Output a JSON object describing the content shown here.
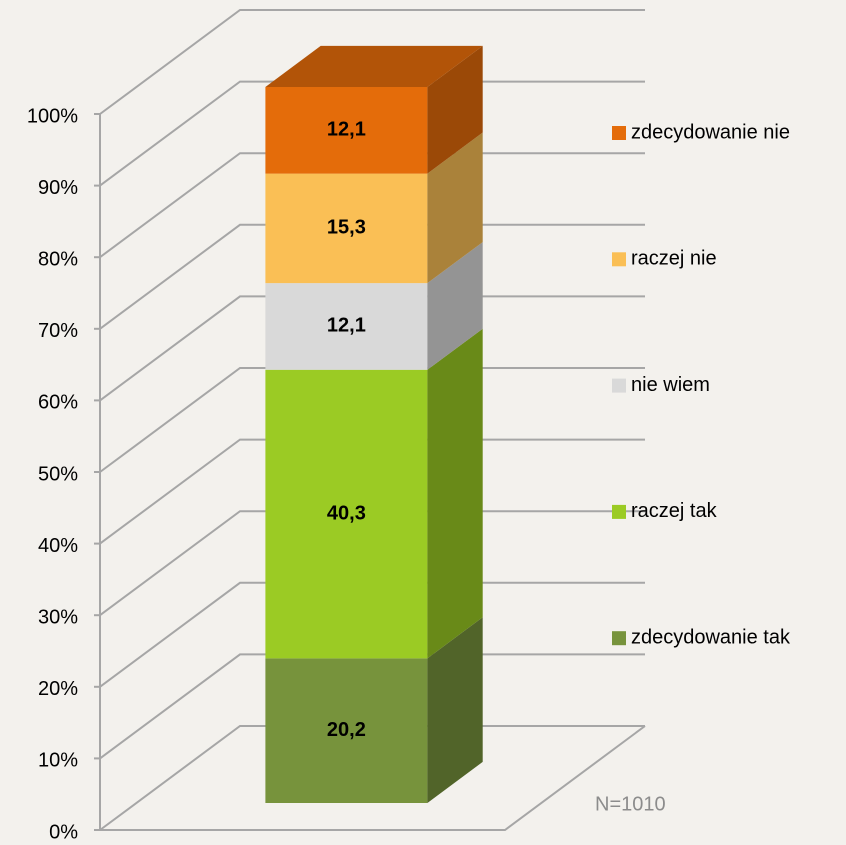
{
  "chart_data": {
    "type": "bar3d_stacked",
    "series": [
      {
        "name": "zdecydowanie tak",
        "color": "#77933c",
        "values": [
          20.2
        ],
        "value_labels": [
          "20,2"
        ]
      },
      {
        "name": "raczej tak",
        "color": "#9bcb24",
        "values": [
          40.3
        ],
        "value_labels": [
          "40,3"
        ]
      },
      {
        "name": "nie wiem",
        "color": "#d9d9d9",
        "values": [
          12.1
        ],
        "value_labels": [
          "12,1"
        ]
      },
      {
        "name": "raczej nie",
        "color": "#fabf55",
        "values": [
          15.3
        ],
        "value_labels": [
          "15,3"
        ]
      },
      {
        "name": "zdecydowanie nie",
        "color": "#e46c0a",
        "values": [
          12.1
        ],
        "value_labels": [
          "12,1"
        ]
      }
    ],
    "ylim": [
      0,
      100
    ],
    "yticks": [
      {
        "value": 0,
        "label": "0%"
      },
      {
        "value": 10,
        "label": "10%"
      },
      {
        "value": 20,
        "label": "20%"
      },
      {
        "value": 30,
        "label": "30%"
      },
      {
        "value": 40,
        "label": "40%"
      },
      {
        "value": 50,
        "label": "50%"
      },
      {
        "value": 60,
        "label": "60%"
      },
      {
        "value": 70,
        "label": "70%"
      },
      {
        "value": 80,
        "label": "80%"
      },
      {
        "value": 90,
        "label": "90%"
      },
      {
        "value": 100,
        "label": "100%"
      }
    ],
    "grid": true,
    "legend": "right",
    "annotation": "N=1010"
  }
}
